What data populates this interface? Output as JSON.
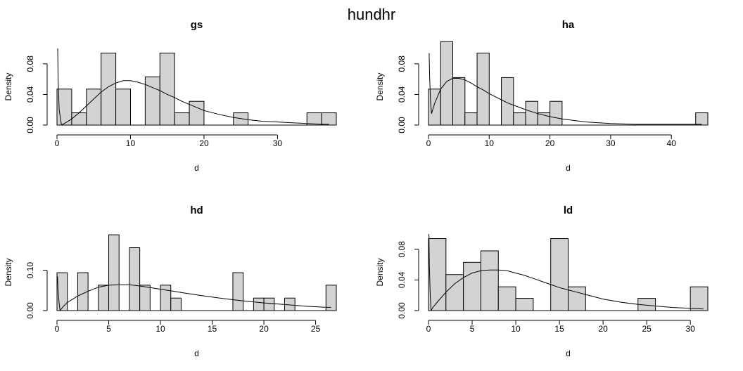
{
  "figure_title": "hundhr",
  "chart_data": [
    {
      "type": "bar",
      "title": "gs",
      "xlabel": "d",
      "ylabel": "Density",
      "xlim": [
        0,
        38
      ],
      "ylim": [
        0,
        0.1
      ],
      "xticks": [
        0,
        10,
        20,
        30
      ],
      "yticks": [
        0.0,
        0.04,
        0.08
      ],
      "ytick_labels": [
        "0.00",
        "0.04",
        "0.08"
      ],
      "bins": [
        [
          0,
          2
        ],
        [
          2,
          4
        ],
        [
          4,
          6
        ],
        [
          6,
          8
        ],
        [
          8,
          10
        ],
        [
          10,
          12
        ],
        [
          12,
          14
        ],
        [
          14,
          16
        ],
        [
          16,
          18
        ],
        [
          18,
          20
        ],
        [
          20,
          22
        ],
        [
          22,
          24
        ],
        [
          24,
          26
        ],
        [
          26,
          28
        ],
        [
          28,
          30
        ],
        [
          30,
          32
        ],
        [
          32,
          34
        ],
        [
          34,
          36
        ],
        [
          36,
          38
        ]
      ],
      "values": [
        0.047,
        0.016,
        0.047,
        0.094,
        0.047,
        0,
        0.063,
        0.094,
        0.016,
        0.031,
        0,
        0,
        0.016,
        0,
        0,
        0,
        0,
        0.016,
        0.016
      ],
      "density_curve": {
        "x": [
          0.6,
          1,
          2,
          3,
          4,
          5,
          6,
          7,
          8,
          9,
          10,
          11,
          12,
          13,
          14,
          15,
          16,
          17,
          18,
          19,
          20,
          22,
          24,
          26,
          28,
          30,
          32,
          34,
          36,
          37
        ],
        "y": [
          0.0,
          0.002,
          0.008,
          0.016,
          0.025,
          0.034,
          0.043,
          0.05,
          0.055,
          0.058,
          0.058,
          0.056,
          0.053,
          0.049,
          0.045,
          0.04,
          0.036,
          0.031,
          0.027,
          0.023,
          0.019,
          0.014,
          0.01,
          0.007,
          0.005,
          0.004,
          0.003,
          0.002,
          0.001,
          0.001
        ]
      },
      "left_spike": {
        "x": [
          0.1,
          0.15,
          0.3,
          0.6
        ],
        "y": [
          0.1,
          0.06,
          0.02,
          0.0
        ]
      }
    },
    {
      "type": "bar",
      "title": "ha",
      "xlabel": "d",
      "ylabel": "Density",
      "xlim": [
        0,
        46
      ],
      "ylim": [
        0,
        0.1
      ],
      "xticks": [
        0,
        10,
        20,
        30,
        40
      ],
      "yticks": [
        0.0,
        0.04,
        0.08
      ],
      "ytick_labels": [
        "0.00",
        "0.04",
        "0.08"
      ],
      "bins": [
        [
          0,
          2
        ],
        [
          2,
          4
        ],
        [
          4,
          6
        ],
        [
          6,
          8
        ],
        [
          8,
          10
        ],
        [
          10,
          12
        ],
        [
          12,
          14
        ],
        [
          14,
          16
        ],
        [
          16,
          18
        ],
        [
          18,
          20
        ],
        [
          20,
          22
        ],
        [
          22,
          24
        ],
        [
          24,
          26
        ],
        [
          26,
          28
        ],
        [
          28,
          30
        ],
        [
          30,
          32
        ],
        [
          32,
          34
        ],
        [
          34,
          36
        ],
        [
          36,
          38
        ],
        [
          38,
          40
        ],
        [
          40,
          42
        ],
        [
          42,
          44
        ],
        [
          44,
          46
        ]
      ],
      "values": [
        0.047,
        0.109,
        0.062,
        0.016,
        0.094,
        0,
        0.062,
        0.016,
        0.031,
        0.016,
        0.031,
        0,
        0,
        0,
        0,
        0,
        0,
        0,
        0,
        0,
        0,
        0,
        0.016
      ],
      "density_curve": {
        "x": [
          0.5,
          1,
          2,
          3,
          4,
          5,
          6,
          7,
          8,
          9,
          10,
          11,
          12,
          13,
          14,
          15,
          16,
          18,
          20,
          22,
          24,
          26,
          28,
          30,
          34,
          38,
          42,
          45
        ],
        "y": [
          0.015,
          0.028,
          0.047,
          0.057,
          0.061,
          0.061,
          0.059,
          0.055,
          0.05,
          0.046,
          0.041,
          0.037,
          0.033,
          0.029,
          0.026,
          0.023,
          0.02,
          0.015,
          0.011,
          0.008,
          0.006,
          0.004,
          0.003,
          0.002,
          0.001,
          0.001,
          0.001,
          0.001
        ]
      },
      "left_spike": {
        "x": [
          0.1,
          0.2,
          0.35,
          0.5
        ],
        "y": [
          0.094,
          0.06,
          0.03,
          0.015
        ]
      }
    },
    {
      "type": "bar",
      "title": "hd",
      "xlabel": "d",
      "ylabel": "Density",
      "xlim": [
        0,
        27
      ],
      "ylim": [
        0,
        0.19
      ],
      "xticks": [
        0,
        5,
        10,
        15,
        20,
        25
      ],
      "yticks": [
        0.0,
        0.1
      ],
      "ytick_labels": [
        "0.00",
        "0.10"
      ],
      "bins": [
        [
          0,
          1
        ],
        [
          1,
          2
        ],
        [
          2,
          3
        ],
        [
          3,
          4
        ],
        [
          4,
          5
        ],
        [
          5,
          6
        ],
        [
          6,
          7
        ],
        [
          7,
          8
        ],
        [
          8,
          9
        ],
        [
          9,
          10
        ],
        [
          10,
          11
        ],
        [
          11,
          12
        ],
        [
          12,
          13
        ],
        [
          13,
          14
        ],
        [
          14,
          15
        ],
        [
          15,
          16
        ],
        [
          16,
          17
        ],
        [
          17,
          18
        ],
        [
          18,
          19
        ],
        [
          19,
          20
        ],
        [
          20,
          21
        ],
        [
          21,
          22
        ],
        [
          22,
          23
        ],
        [
          23,
          24
        ],
        [
          24,
          25
        ],
        [
          25,
          26
        ],
        [
          26,
          27
        ]
      ],
      "values": [
        0.094,
        0,
        0.094,
        0,
        0.063,
        0.188,
        0,
        0.156,
        0.063,
        0,
        0.063,
        0.031,
        0,
        0,
        0,
        0,
        0,
        0.094,
        0,
        0.031,
        0.031,
        0,
        0.031,
        0,
        0,
        0,
        0.063
      ],
      "density_curve": {
        "x": [
          0.3,
          0.6,
          1,
          1.5,
          2,
          3,
          4,
          5,
          6,
          7,
          8,
          9,
          10,
          11,
          12,
          14,
          16,
          18,
          20,
          22,
          24,
          26,
          26.5
        ],
        "y": [
          0.0,
          0.01,
          0.02,
          0.028,
          0.036,
          0.048,
          0.058,
          0.063,
          0.064,
          0.064,
          0.061,
          0.057,
          0.053,
          0.049,
          0.045,
          0.037,
          0.03,
          0.024,
          0.019,
          0.015,
          0.011,
          0.008,
          0.008
        ]
      },
      "left_spike": {
        "x": [
          0.05,
          0.1,
          0.2,
          0.3
        ],
        "y": [
          0.085,
          0.05,
          0.02,
          0.0
        ]
      }
    },
    {
      "type": "bar",
      "title": "ld",
      "xlabel": "d",
      "ylabel": "Density",
      "xlim": [
        0,
        32
      ],
      "ylim": [
        0,
        0.1
      ],
      "xticks": [
        0,
        5,
        10,
        15,
        20,
        25,
        30
      ],
      "yticks": [
        0.0,
        0.04,
        0.08
      ],
      "ytick_labels": [
        "0.00",
        "0.04",
        "0.08"
      ],
      "bins": [
        [
          0,
          2
        ],
        [
          2,
          4
        ],
        [
          4,
          6
        ],
        [
          6,
          8
        ],
        [
          8,
          10
        ],
        [
          10,
          12
        ],
        [
          12,
          14
        ],
        [
          14,
          16
        ],
        [
          16,
          18
        ],
        [
          18,
          20
        ],
        [
          20,
          22
        ],
        [
          22,
          24
        ],
        [
          24,
          26
        ],
        [
          26,
          28
        ],
        [
          28,
          30
        ],
        [
          30,
          32
        ]
      ],
      "values": [
        0.094,
        0.047,
        0.063,
        0.078,
        0.031,
        0.016,
        0,
        0.094,
        0.031,
        0,
        0,
        0,
        0.016,
        0,
        0,
        0.031
      ],
      "density_curve": {
        "x": [
          0.3,
          0.5,
          1,
          2,
          3,
          4,
          5,
          6,
          7,
          8,
          9,
          10,
          11,
          12,
          13,
          14,
          15,
          16,
          17,
          18,
          19,
          20,
          22,
          24,
          26,
          28,
          30,
          31.5
        ],
        "y": [
          0.0,
          0.004,
          0.011,
          0.024,
          0.035,
          0.043,
          0.049,
          0.052,
          0.053,
          0.053,
          0.052,
          0.049,
          0.046,
          0.042,
          0.038,
          0.034,
          0.03,
          0.027,
          0.024,
          0.021,
          0.018,
          0.015,
          0.011,
          0.008,
          0.006,
          0.004,
          0.003,
          0.002
        ]
      },
      "left_spike": {
        "x": [
          0.05,
          0.1,
          0.2,
          0.3
        ],
        "y": [
          0.1,
          0.06,
          0.02,
          0.0
        ]
      }
    }
  ]
}
